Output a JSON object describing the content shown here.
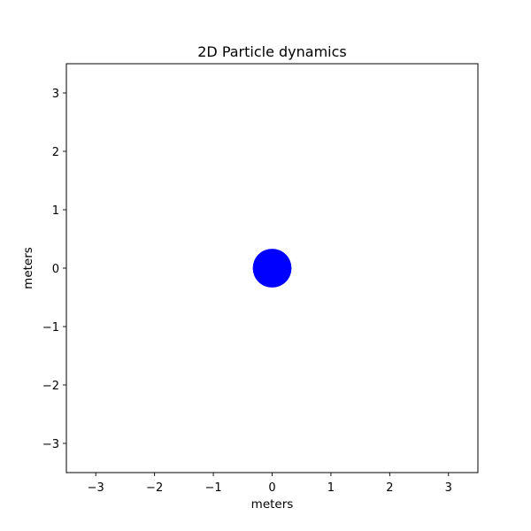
{
  "chart_data": {
    "type": "scatter",
    "title": "2D Particle dynamics",
    "xlabel": "meters",
    "ylabel": "meters",
    "xlim": [
      -3.5,
      3.5
    ],
    "ylim": [
      -3.5,
      3.5
    ],
    "xticks": [
      -3,
      -2,
      -1,
      0,
      1,
      2,
      3
    ],
    "yticks": [
      -3,
      -2,
      -1,
      0,
      1,
      2,
      3
    ],
    "grid": false,
    "points": [
      {
        "x": 0,
        "y": 0,
        "radius": 0.33,
        "color": "#0000ff"
      }
    ]
  }
}
